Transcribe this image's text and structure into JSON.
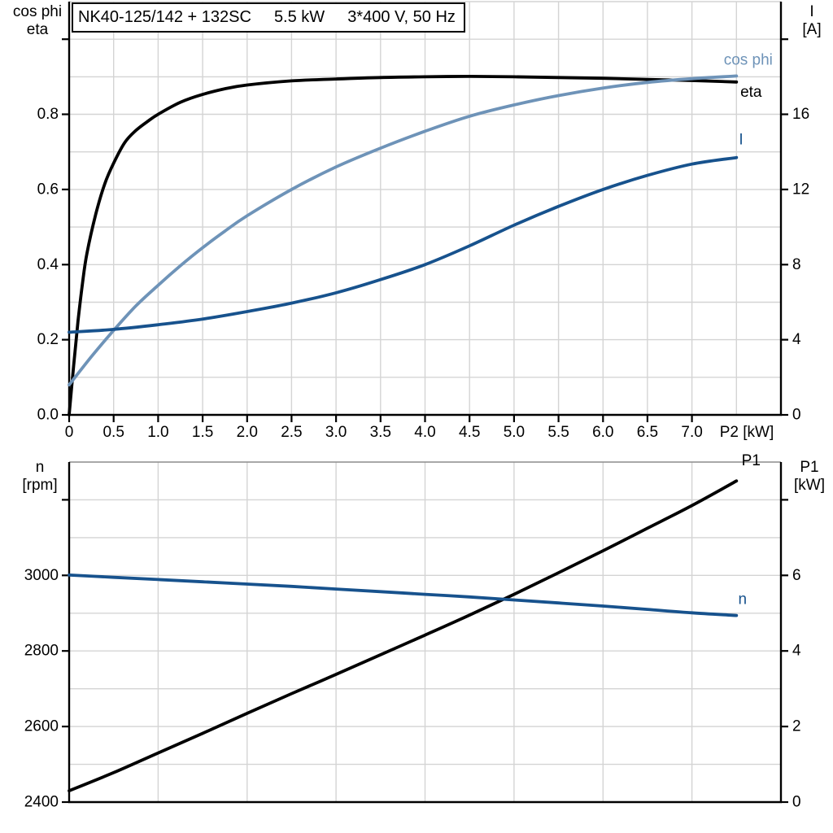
{
  "title_box": {
    "segments": [
      "NK40-125/142 + 132SC",
      "5.5 kW",
      "3*400 V, 50 Hz"
    ]
  },
  "colors": {
    "black": "#000000",
    "light_blue": "#6E93B8",
    "dark_blue": "#17528D",
    "grid": "#D4D4D4",
    "frame_gray": "#8C8C8C",
    "text": "#000000",
    "background": "#FFFFFF"
  },
  "chart_data": [
    {
      "type": "line",
      "name": "efficiency-cosphi-current-vs-shaft-power",
      "title": "NK40-125/142 + 132SC  5.5 kW  3*400 V, 50 Hz",
      "x_axis": {
        "label": "P2 [kW]",
        "min": 0,
        "max": 8,
        "grid_step": 0.5,
        "ticks": [
          {
            "v": 0,
            "t": "0"
          },
          {
            "v": 0.5,
            "t": "0.5"
          },
          {
            "v": 1,
            "t": "1.0"
          },
          {
            "v": 1.5,
            "t": "1.5"
          },
          {
            "v": 2,
            "t": "2.0"
          },
          {
            "v": 2.5,
            "t": "2.5"
          },
          {
            "v": 3,
            "t": "3.0"
          },
          {
            "v": 3.5,
            "t": "3.5"
          },
          {
            "v": 4,
            "t": "4.0"
          },
          {
            "v": 4.5,
            "t": "4.5"
          },
          {
            "v": 5,
            "t": "5.0"
          },
          {
            "v": 5.5,
            "t": "5.5"
          },
          {
            "v": 6,
            "t": "6.0"
          },
          {
            "v": 6.5,
            "t": "6.5"
          },
          {
            "v": 7,
            "t": "7.0"
          }
        ]
      },
      "left_axis": {
        "label_lines": [
          "cos phi",
          "eta"
        ],
        "min": 0,
        "max": 1.1,
        "grid_step": 0.1,
        "grid_to_edge": true,
        "ticks": [
          {
            "v": 0,
            "t": "0.0"
          },
          {
            "v": 0.2,
            "t": "0.2"
          },
          {
            "v": 0.4,
            "t": "0.4"
          },
          {
            "v": 0.6,
            "t": "0.6"
          },
          {
            "v": 0.8,
            "t": "0.8"
          },
          {
            "v": 1.0,
            "t": ""
          }
        ]
      },
      "right_axis": {
        "label_lines": [
          "I",
          "[A]"
        ],
        "min": 0,
        "max": 22,
        "ticks": [
          {
            "v": 0,
            "t": "0"
          },
          {
            "v": 4,
            "t": "4"
          },
          {
            "v": 8,
            "t": "8"
          },
          {
            "v": 12,
            "t": "12"
          },
          {
            "v": 16,
            "t": "16"
          },
          {
            "v": 20,
            "t": ""
          }
        ]
      },
      "series": [
        {
          "name": "eta",
          "axis": "left",
          "color": "black",
          "label": "eta",
          "label_color": "black",
          "label_fx": 0.958,
          "label_fy": 0.219,
          "points": [
            [
              0,
              0
            ],
            [
              0.05,
              0.13
            ],
            [
              0.1,
              0.25
            ],
            [
              0.15,
              0.35
            ],
            [
              0.2,
              0.43
            ],
            [
              0.3,
              0.535
            ],
            [
              0.4,
              0.615
            ],
            [
              0.5,
              0.67
            ],
            [
              0.625,
              0.725
            ],
            [
              0.75,
              0.757
            ],
            [
              0.875,
              0.78
            ],
            [
              1,
              0.8
            ],
            [
              1.25,
              0.832
            ],
            [
              1.5,
              0.853
            ],
            [
              1.75,
              0.868
            ],
            [
              2,
              0.878
            ],
            [
              2.5,
              0.889
            ],
            [
              3,
              0.894
            ],
            [
              3.5,
              0.898
            ],
            [
              4,
              0.9
            ],
            [
              4.5,
              0.901
            ],
            [
              5,
              0.9
            ],
            [
              5.5,
              0.898
            ],
            [
              6,
              0.896
            ],
            [
              6.5,
              0.893
            ],
            [
              7,
              0.89
            ],
            [
              7.5,
              0.886
            ]
          ]
        },
        {
          "name": "cos phi",
          "axis": "left",
          "color": "light_blue",
          "label": "cos phi",
          "label_color": "light_blue",
          "label_fx": 0.954,
          "label_fy": 0.142,
          "points": [
            [
              0,
              0.08
            ],
            [
              0.25,
              0.155
            ],
            [
              0.5,
              0.225
            ],
            [
              0.75,
              0.29
            ],
            [
              1,
              0.345
            ],
            [
              1.25,
              0.397
            ],
            [
              1.5,
              0.445
            ],
            [
              1.75,
              0.489
            ],
            [
              2,
              0.53
            ],
            [
              2.5,
              0.6
            ],
            [
              3,
              0.66
            ],
            [
              3.5,
              0.71
            ],
            [
              4,
              0.755
            ],
            [
              4.5,
              0.795
            ],
            [
              5,
              0.825
            ],
            [
              5.5,
              0.85
            ],
            [
              6,
              0.87
            ],
            [
              6.5,
              0.885
            ],
            [
              7,
              0.895
            ],
            [
              7.5,
              0.902
            ]
          ]
        },
        {
          "name": "I",
          "axis": "right",
          "color": "dark_blue",
          "label": "I",
          "label_color": "dark_blue",
          "label_fx": 0.944,
          "label_fy": 0.335,
          "points": [
            [
              0,
              4.4
            ],
            [
              0.5,
              4.55
            ],
            [
              1,
              4.8
            ],
            [
              1.5,
              5.1
            ],
            [
              2,
              5.5
            ],
            [
              2.5,
              5.95
            ],
            [
              3,
              6.5
            ],
            [
              3.5,
              7.2
            ],
            [
              4,
              8
            ],
            [
              4.5,
              9
            ],
            [
              5,
              10.1
            ],
            [
              5.5,
              11.1
            ],
            [
              6,
              12
            ],
            [
              6.5,
              12.75
            ],
            [
              7,
              13.35
            ],
            [
              7.5,
              13.7
            ]
          ]
        }
      ]
    },
    {
      "type": "line",
      "name": "speed-and-input-power-vs-shaft-power",
      "x_axis": {
        "label": "",
        "min": 0,
        "max": 8,
        "grid_step": 1,
        "ticks": []
      },
      "left_axis": {
        "label_lines": [
          "n",
          "[rpm]"
        ],
        "min": 2400,
        "max": 3300,
        "grid_step": 100,
        "grid_to_edge": false,
        "ticks": [
          {
            "v": 2400,
            "t": "2400"
          },
          {
            "v": 2600,
            "t": "2600"
          },
          {
            "v": 2800,
            "t": "2800"
          },
          {
            "v": 3000,
            "t": "3000"
          },
          {
            "v": 3200,
            "t": ""
          }
        ]
      },
      "right_axis": {
        "label_lines": [
          "P1",
          "[kW]"
        ],
        "min": 0,
        "max": 9,
        "ticks": [
          {
            "v": 0,
            "t": "0"
          },
          {
            "v": 2,
            "t": "2"
          },
          {
            "v": 4,
            "t": "4"
          },
          {
            "v": 6,
            "t": "6"
          },
          {
            "v": 8,
            "t": ""
          }
        ]
      },
      "series": [
        {
          "name": "P1",
          "axis": "right",
          "color": "black",
          "label": "P1",
          "label_color": "black",
          "label_fx": 0.958,
          "label_fy": -0.003,
          "points": [
            [
              0,
              0.3
            ],
            [
              0.5,
              0.78
            ],
            [
              1,
              1.3
            ],
            [
              1.5,
              1.82
            ],
            [
              2,
              2.35
            ],
            [
              2.5,
              2.87
            ],
            [
              3,
              3.38
            ],
            [
              3.5,
              3.9
            ],
            [
              4,
              4.42
            ],
            [
              4.5,
              4.95
            ],
            [
              5,
              5.5
            ],
            [
              5.5,
              6.07
            ],
            [
              6,
              6.65
            ],
            [
              6.5,
              7.25
            ],
            [
              7,
              7.85
            ],
            [
              7.5,
              8.5
            ]
          ]
        },
        {
          "name": "n",
          "axis": "left",
          "color": "dark_blue",
          "label": "n",
          "label_color": "dark_blue",
          "label_fx": 0.946,
          "label_fy": 0.404,
          "points": [
            [
              0,
              3001
            ],
            [
              0.5,
              2995
            ],
            [
              1,
              2989
            ],
            [
              1.5,
              2983
            ],
            [
              2,
              2977
            ],
            [
              2.5,
              2971
            ],
            [
              3,
              2964
            ],
            [
              3.5,
              2957
            ],
            [
              4,
              2950
            ],
            [
              4.5,
              2943
            ],
            [
              5,
              2935
            ],
            [
              5.5,
              2927
            ],
            [
              6,
              2919
            ],
            [
              6.5,
              2910
            ],
            [
              7,
              2901
            ],
            [
              7.5,
              2894
            ]
          ]
        }
      ]
    }
  ]
}
